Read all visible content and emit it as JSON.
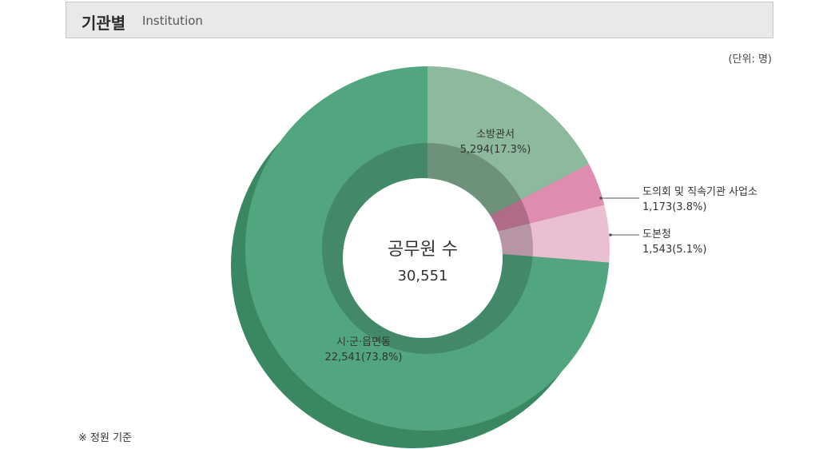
{
  "header": {
    "title": "기관별",
    "subtitle": "Institution"
  },
  "unit_label": "(단위: 명)",
  "footnote": "※ 정원 기준",
  "colors": {
    "main_green": "#52a67f",
    "side_green": "#3a8862",
    "light_green": "#8dba9c",
    "pink": "#e08bb0",
    "light_pink": "#ebbfd2"
  },
  "chart_data": {
    "type": "pie",
    "style": "3d-donut",
    "center_title": "공무원 수",
    "center_value": "30,551",
    "total": 30551,
    "slices": [
      {
        "name": "소방관서",
        "value": 5294,
        "value_label": "5,294(17.3%)",
        "percent": 17.3
      },
      {
        "name": "도의회 및 직속기관 사업소",
        "value": 1173,
        "value_label": "1,173(3.8%)",
        "percent": 3.8
      },
      {
        "name": "도본청",
        "value": 1543,
        "value_label": "1,543(5.1%)",
        "percent": 5.1
      },
      {
        "name": "시·군·읍면동",
        "value": 22541,
        "value_label": "22,541(73.8%)",
        "percent": 73.8
      }
    ]
  }
}
